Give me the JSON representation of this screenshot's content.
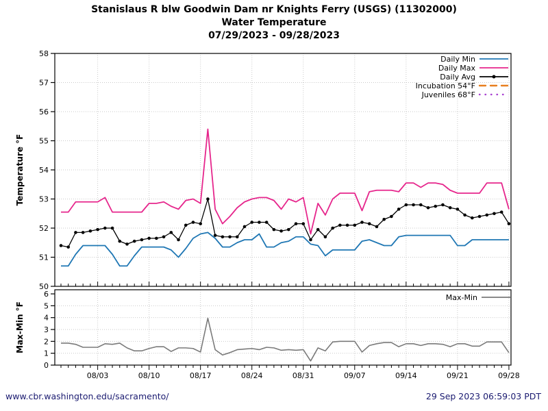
{
  "title": {
    "line1": "Stanislaus R blw Goodwin Dam nr Knights Ferry (USGS) (11302000)",
    "line2": "Water Temperature",
    "line3": "07/29/2023 - 09/28/2023"
  },
  "footer": {
    "url": "www.cbr.washington.edu/sacramento/",
    "timestamp": "29 Sep 2023 06:59:03 PDT"
  },
  "colors": {
    "daily_min": "#1f77b4",
    "daily_max": "#e6268c",
    "daily_avg": "#000000",
    "incubation": "#e87f1e",
    "juveniles": "#a943d1",
    "max_min": "#7a7a7a",
    "grid": "#c9c9c9",
    "axis": "#000000",
    "footer_text": "#1a1a70"
  },
  "chart_data": [
    {
      "type": "line",
      "ylabel": "Temperature °F",
      "ylim": [
        50,
        58
      ],
      "yticks": [
        50,
        51,
        52,
        53,
        54,
        55,
        56,
        57,
        58
      ],
      "grid": true,
      "legend_position": "top-right",
      "x": [
        "07/29",
        "07/30",
        "07/31",
        "08/01",
        "08/02",
        "08/03",
        "08/04",
        "08/05",
        "08/06",
        "08/07",
        "08/08",
        "08/09",
        "08/10",
        "08/11",
        "08/12",
        "08/13",
        "08/14",
        "08/15",
        "08/16",
        "08/17",
        "08/18",
        "08/19",
        "08/20",
        "08/21",
        "08/22",
        "08/23",
        "08/24",
        "08/25",
        "08/26",
        "08/27",
        "08/28",
        "08/29",
        "08/30",
        "08/31",
        "09/01",
        "09/02",
        "09/03",
        "09/04",
        "09/05",
        "09/06",
        "09/07",
        "09/08",
        "09/09",
        "09/10",
        "09/11",
        "09/12",
        "09/13",
        "09/14",
        "09/15",
        "09/16",
        "09/17",
        "09/18",
        "09/19",
        "09/20",
        "09/21",
        "09/22",
        "09/23",
        "09/24",
        "09/25",
        "09/26",
        "09/27",
        "09/28"
      ],
      "x_tick_labels": [
        "08/03",
        "08/10",
        "08/17",
        "08/24",
        "08/31",
        "09/07",
        "09/14",
        "09/21",
        "09/28"
      ],
      "series": [
        {
          "name": "Daily Min",
          "color": "#1f77b4",
          "style": "solid",
          "marker": "none",
          "values": [
            50.7,
            50.7,
            51.1,
            51.4,
            51.4,
            51.4,
            51.4,
            51.1,
            50.7,
            50.7,
            51.05,
            51.35,
            51.35,
            51.35,
            51.35,
            51.25,
            51.0,
            51.3,
            51.65,
            51.8,
            51.85,
            51.65,
            51.35,
            51.35,
            51.5,
            51.6,
            51.6,
            51.8,
            51.35,
            51.35,
            51.5,
            51.55,
            51.7,
            51.7,
            51.45,
            51.4,
            51.05,
            51.25,
            51.25,
            51.25,
            51.25,
            51.55,
            51.6,
            51.5,
            51.4,
            51.4,
            51.7,
            51.75,
            51.75,
            51.75,
            51.75,
            51.75,
            51.75,
            51.75,
            51.4,
            51.4,
            51.6,
            51.6,
            51.6,
            51.6,
            51.6,
            51.6
          ]
        },
        {
          "name": "Daily Max",
          "color": "#e6268c",
          "style": "solid",
          "marker": "none",
          "values": [
            52.55,
            52.55,
            52.9,
            52.9,
            52.9,
            52.9,
            53.05,
            52.55,
            52.55,
            52.55,
            52.55,
            52.55,
            52.85,
            52.85,
            52.9,
            52.75,
            52.65,
            52.95,
            53.0,
            52.85,
            55.4,
            52.65,
            52.15,
            52.4,
            52.7,
            52.9,
            53.0,
            53.05,
            53.05,
            52.95,
            52.65,
            53.0,
            52.9,
            53.05,
            51.8,
            52.85,
            52.45,
            53.0,
            53.2,
            53.2,
            53.2,
            52.6,
            53.25,
            53.3,
            53.3,
            53.3,
            53.25,
            53.55,
            53.55,
            53.4,
            53.55,
            53.55,
            53.5,
            53.3,
            53.2,
            53.2,
            53.2,
            53.2,
            53.55,
            53.55,
            53.55,
            52.65
          ]
        },
        {
          "name": "Daily Avg",
          "color": "#000000",
          "style": "solid",
          "marker": "dot",
          "values": [
            51.4,
            51.35,
            51.85,
            51.85,
            51.9,
            51.95,
            52.0,
            52.0,
            51.55,
            51.45,
            51.55,
            51.6,
            51.65,
            51.65,
            51.7,
            51.85,
            51.6,
            52.1,
            52.2,
            52.15,
            53.0,
            51.75,
            51.7,
            51.7,
            51.7,
            52.05,
            52.2,
            52.2,
            52.2,
            51.95,
            51.9,
            51.95,
            52.15,
            52.15,
            51.6,
            51.95,
            51.7,
            52.0,
            52.1,
            52.1,
            52.1,
            52.2,
            52.15,
            52.05,
            52.3,
            52.4,
            52.65,
            52.8,
            52.8,
            52.8,
            52.7,
            52.75,
            52.8,
            52.7,
            52.65,
            52.45,
            52.35,
            52.4,
            52.45,
            52.5,
            52.55,
            52.15
          ]
        }
      ],
      "legend": [
        {
          "label": "Daily Min",
          "color": "#1f77b4",
          "style": "solid",
          "marker": "none"
        },
        {
          "label": "Daily Max",
          "color": "#e6268c",
          "style": "solid",
          "marker": "none"
        },
        {
          "label": "Daily Avg",
          "color": "#000000",
          "style": "solid",
          "marker": "dot"
        },
        {
          "label": "Incubation 54°F",
          "color": "#e87f1e",
          "style": "dashed",
          "marker": "none"
        },
        {
          "label": "Juveniles 68°F",
          "color": "#a943d1",
          "style": "dotted",
          "marker": "none"
        }
      ]
    },
    {
      "type": "line",
      "ylabel": "Max-Min °F",
      "ylim": [
        0,
        6
      ],
      "yticks": [
        0,
        1,
        2,
        3,
        4,
        5,
        6
      ],
      "grid": true,
      "legend_position": "top-right",
      "series": [
        {
          "name": "Max-Min",
          "color": "#7a7a7a",
          "style": "solid",
          "marker": "none",
          "values": [
            1.85,
            1.85,
            1.75,
            1.5,
            1.5,
            1.5,
            1.8,
            1.75,
            1.85,
            1.45,
            1.2,
            1.2,
            1.4,
            1.55,
            1.55,
            1.15,
            1.45,
            1.45,
            1.4,
            1.1,
            3.95,
            1.3,
            0.85,
            1.05,
            1.3,
            1.35,
            1.4,
            1.3,
            1.5,
            1.45,
            1.25,
            1.3,
            1.25,
            1.3,
            0.35,
            1.45,
            1.2,
            1.95,
            2.0,
            2.0,
            2.0,
            1.1,
            1.65,
            1.8,
            1.9,
            1.9,
            1.55,
            1.8,
            1.8,
            1.65,
            1.8,
            1.8,
            1.75,
            1.55,
            1.8,
            1.8,
            1.6,
            1.6,
            1.95,
            1.95,
            1.95,
            1.05
          ]
        }
      ],
      "legend": [
        {
          "label": "Max-Min",
          "color": "#7a7a7a",
          "style": "solid",
          "marker": "none"
        }
      ]
    }
  ]
}
